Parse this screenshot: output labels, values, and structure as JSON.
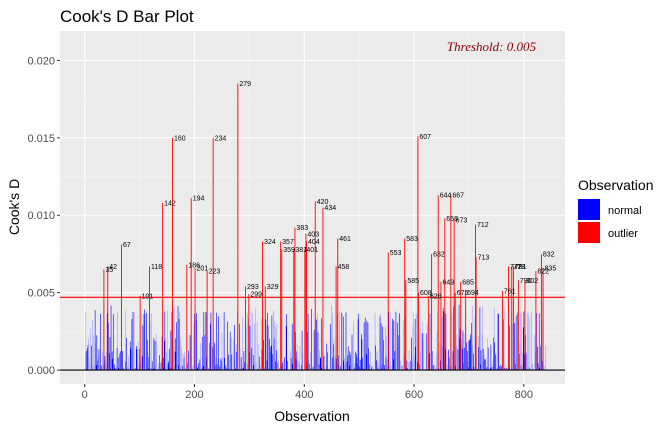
{
  "chart_data": {
    "type": "bar",
    "title": "Cook's D Bar Plot",
    "xlabel": "Observation",
    "ylabel": "Cook's D",
    "xlim": [
      -45,
      875
    ],
    "ylim": [
      -0.0009,
      0.0219
    ],
    "x_ticks": [
      0,
      200,
      400,
      600,
      800
    ],
    "y_ticks": [
      0.0,
      0.005,
      0.01,
      0.015,
      0.02
    ],
    "x_tick_labels": [
      "0",
      "200",
      "400",
      "600",
      "800"
    ],
    "y_tick_labels": [
      "0.000",
      "0.005",
      "0.010",
      "0.015",
      "0.020"
    ],
    "grid": true,
    "threshold": 0.0047,
    "threshold_label": "Threshold: 0.005",
    "n_observations": 840,
    "legend": {
      "title": "Observation",
      "position": "right",
      "entries": [
        {
          "label": "normal",
          "color": "#0000ff"
        },
        {
          "label": "outlier",
          "color": "#ff0000"
        }
      ]
    },
    "outliers": [
      {
        "obs": 35,
        "value": 0.0065,
        "label": "35"
      },
      {
        "obs": 42,
        "value": 0.0067,
        "label": "42"
      },
      {
        "obs": 67,
        "value": 0.0081,
        "label": "67"
      },
      {
        "obs": 101,
        "value": 0.0048,
        "label": "101"
      },
      {
        "obs": 118,
        "value": 0.0067,
        "label": "118"
      },
      {
        "obs": 142,
        "value": 0.0108,
        "label": "142"
      },
      {
        "obs": 160,
        "value": 0.015,
        "label": "160"
      },
      {
        "obs": 186,
        "value": 0.0068,
        "label": "186"
      },
      {
        "obs": 194,
        "value": 0.0111,
        "label": "194"
      },
      {
        "obs": 201,
        "value": 0.0066,
        "label": "201"
      },
      {
        "obs": 223,
        "value": 0.0064,
        "label": "223"
      },
      {
        "obs": 234,
        "value": 0.015,
        "label": "234"
      },
      {
        "obs": 279,
        "value": 0.0185,
        "label": "279"
      },
      {
        "obs": 293,
        "value": 0.0054,
        "label": "293"
      },
      {
        "obs": 299,
        "value": 0.0049,
        "label": "299"
      },
      {
        "obs": 324,
        "value": 0.0083,
        "label": "324"
      },
      {
        "obs": 329,
        "value": 0.0054,
        "label": "329"
      },
      {
        "obs": 357,
        "value": 0.0083,
        "label": "357"
      },
      {
        "obs": 359,
        "value": 0.0078,
        "label": "359"
      },
      {
        "obs": 381,
        "value": 0.0078,
        "label": "381"
      },
      {
        "obs": 383,
        "value": 0.0092,
        "label": "383"
      },
      {
        "obs": 401,
        "value": 0.0078,
        "label": "401"
      },
      {
        "obs": 403,
        "value": 0.0088,
        "label": "403"
      },
      {
        "obs": 404,
        "value": 0.0083,
        "label": "404"
      },
      {
        "obs": 420,
        "value": 0.0109,
        "label": "420"
      },
      {
        "obs": 434,
        "value": 0.0105,
        "label": "434"
      },
      {
        "obs": 458,
        "value": 0.0067,
        "label": "458"
      },
      {
        "obs": 461,
        "value": 0.0085,
        "label": "461"
      },
      {
        "obs": 553,
        "value": 0.0076,
        "label": "553"
      },
      {
        "obs": 583,
        "value": 0.0085,
        "label": "583"
      },
      {
        "obs": 585,
        "value": 0.0058,
        "label": "585"
      },
      {
        "obs": 607,
        "value": 0.0151,
        "label": "607"
      },
      {
        "obs": 608,
        "value": 0.005,
        "label": "608"
      },
      {
        "obs": 626,
        "value": 0.0048,
        "label": "626"
      },
      {
        "obs": 632,
        "value": 0.0075,
        "label": "632"
      },
      {
        "obs": 644,
        "value": 0.0113,
        "label": "644"
      },
      {
        "obs": 649,
        "value": 0.0057,
        "label": "649"
      },
      {
        "obs": 656,
        "value": 0.0098,
        "label": "656"
      },
      {
        "obs": 667,
        "value": 0.0113,
        "label": "667"
      },
      {
        "obs": 673,
        "value": 0.0097,
        "label": "673"
      },
      {
        "obs": 675,
        "value": 0.005,
        "label": "675"
      },
      {
        "obs": 685,
        "value": 0.0057,
        "label": "685"
      },
      {
        "obs": 694,
        "value": 0.005,
        "label": "694"
      },
      {
        "obs": 712,
        "value": 0.0094,
        "label": "712"
      },
      {
        "obs": 713,
        "value": 0.0073,
        "label": "713"
      },
      {
        "obs": 761,
        "value": 0.0051,
        "label": "761"
      },
      {
        "obs": 772,
        "value": 0.0067,
        "label": "772"
      },
      {
        "obs": 778,
        "value": 0.0067,
        "label": "778"
      },
      {
        "obs": 781,
        "value": 0.0067,
        "label": "781"
      },
      {
        "obs": 790,
        "value": 0.0058,
        "label": "790"
      },
      {
        "obs": 802,
        "value": 0.0058,
        "label": "802"
      },
      {
        "obs": 822,
        "value": 0.0064,
        "label": "822"
      },
      {
        "obs": 832,
        "value": 0.0075,
        "label": "832"
      },
      {
        "obs": 835,
        "value": 0.0066,
        "label": "835"
      }
    ]
  }
}
